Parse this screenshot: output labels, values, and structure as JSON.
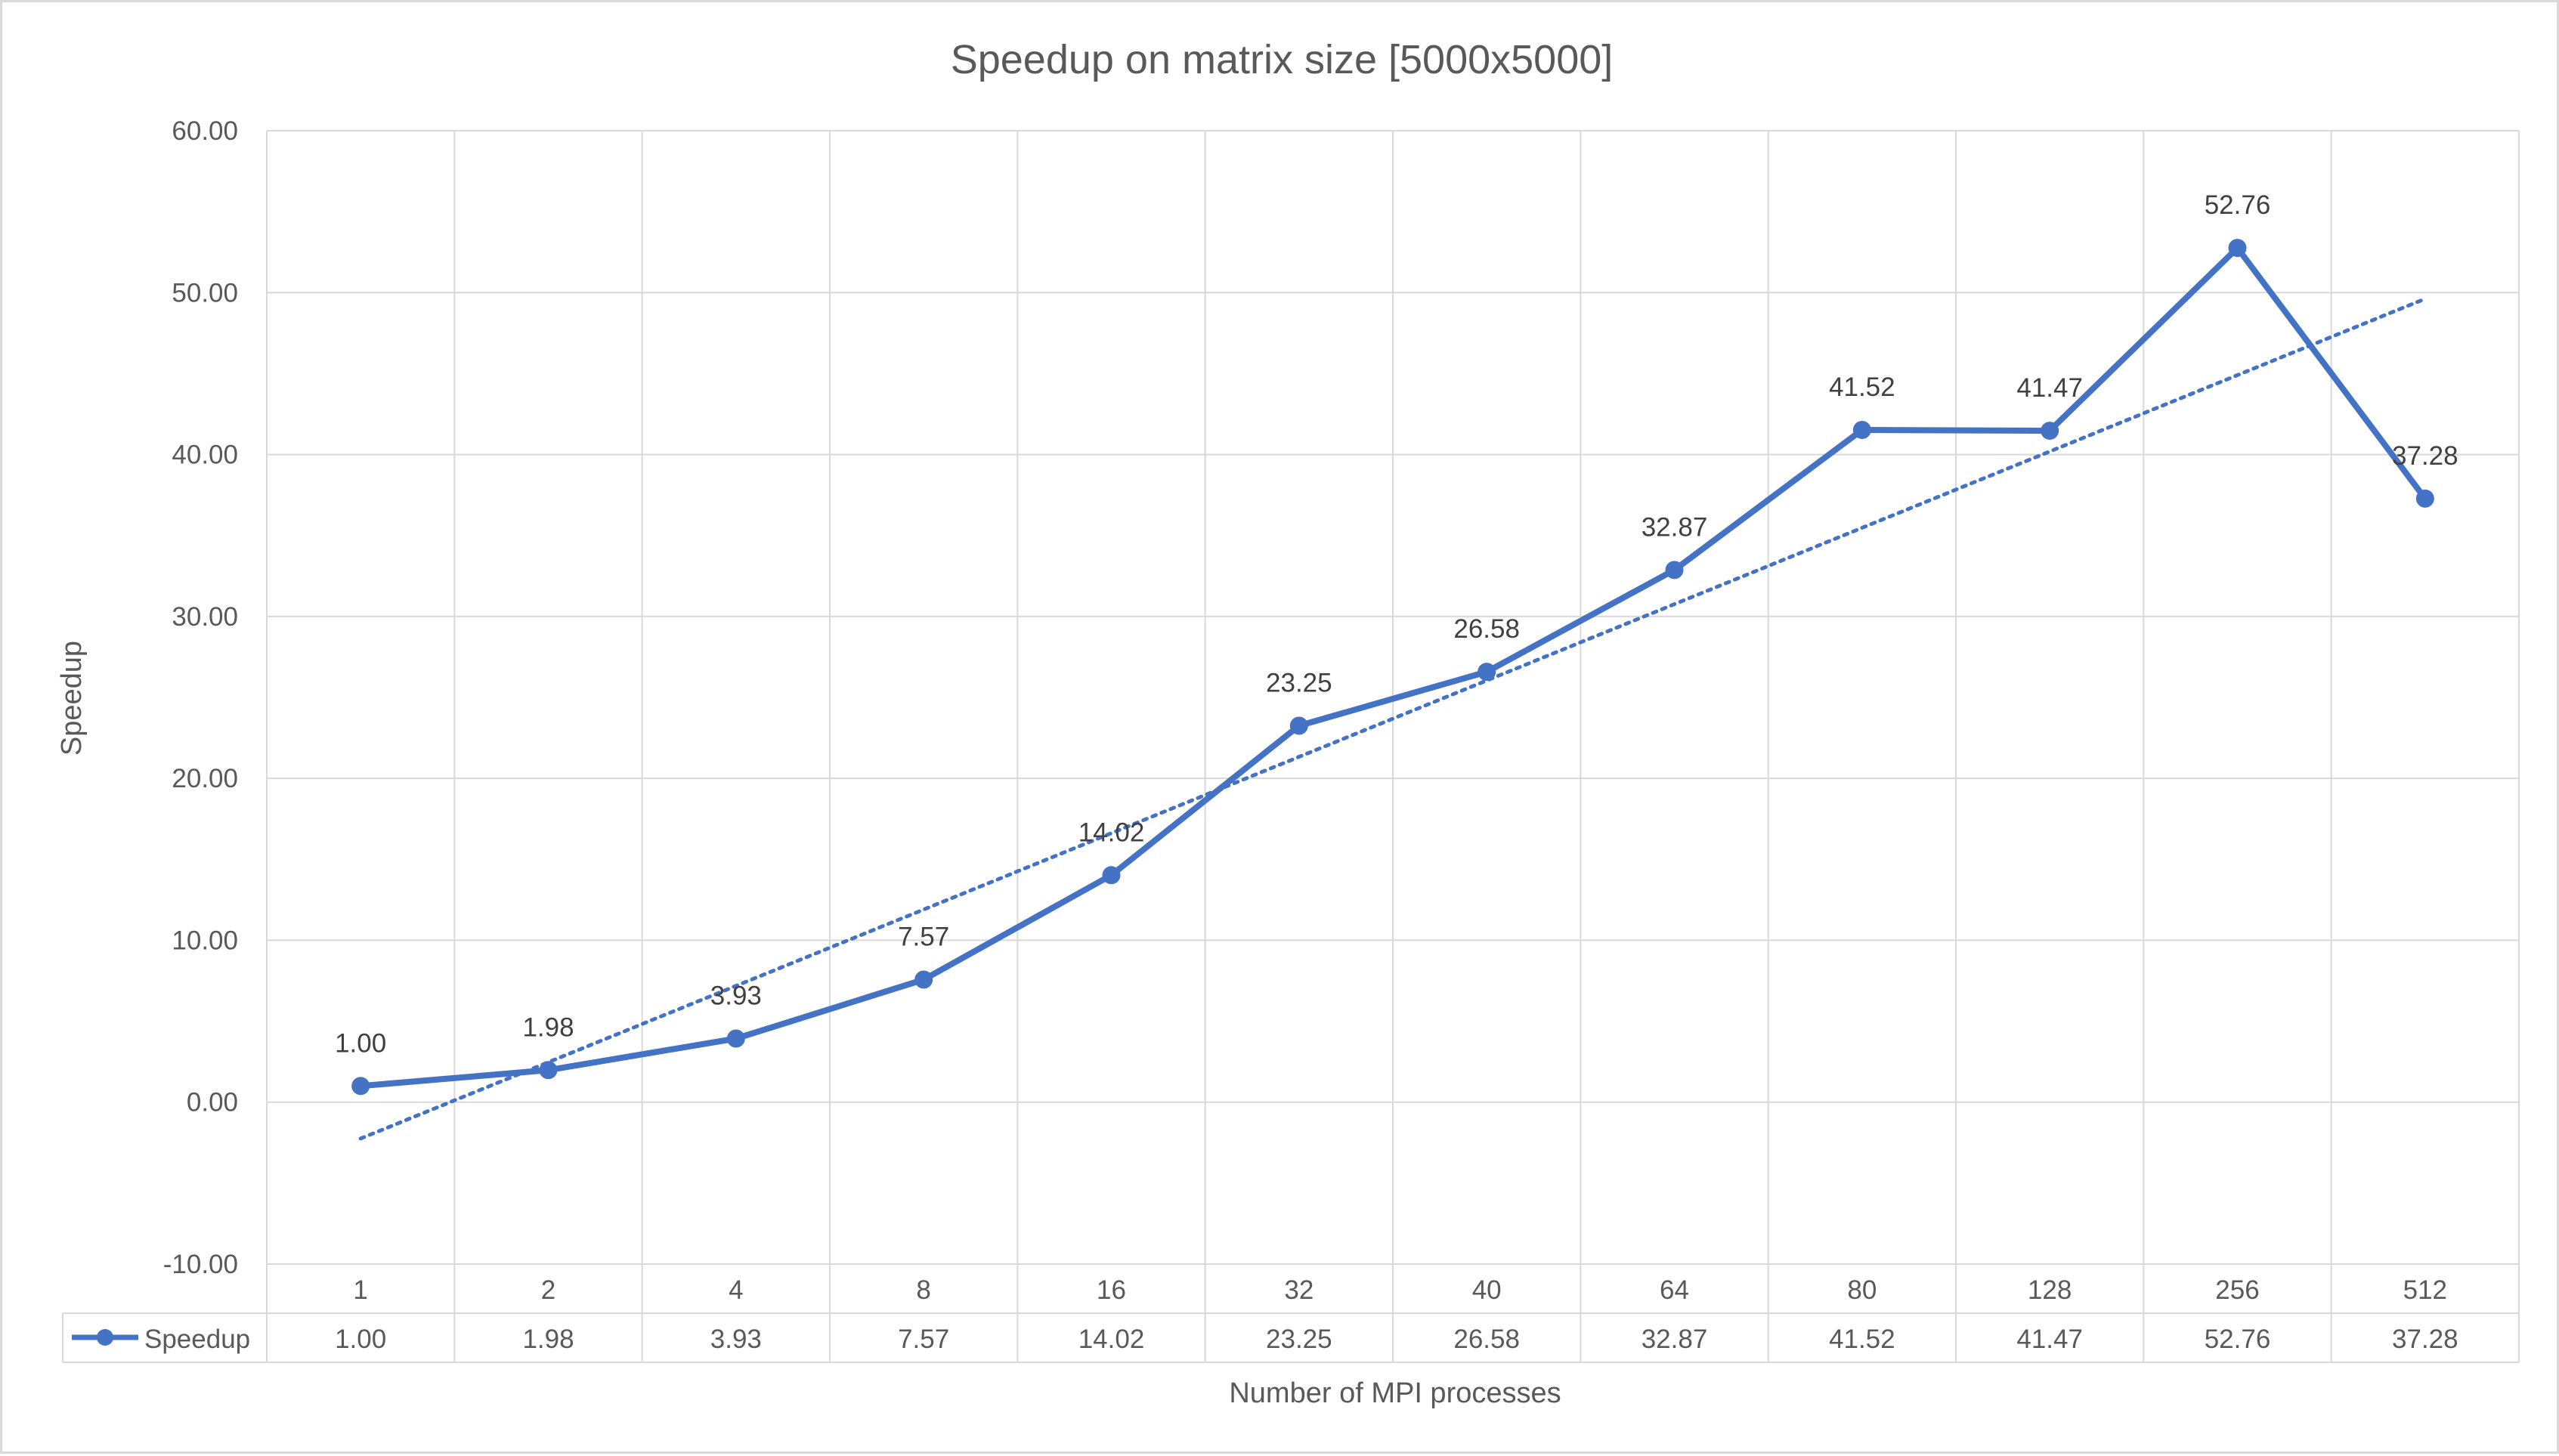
{
  "chart_data": {
    "type": "line",
    "title": "Speedup on matrix size [5000x5000]",
    "xlabel": "Number of MPI processes",
    "ylabel": "Speedup",
    "categories": [
      "1",
      "2",
      "4",
      "8",
      "16",
      "32",
      "40",
      "64",
      "80",
      "128",
      "256",
      "512"
    ],
    "series": [
      {
        "name": "Speedup",
        "values": [
          1.0,
          1.98,
          3.93,
          7.57,
          14.02,
          23.25,
          26.58,
          32.87,
          41.52,
          41.47,
          52.76,
          37.28
        ],
        "labels": [
          "1.00",
          "1.98",
          "3.93",
          "7.57",
          "14.02",
          "23.25",
          "26.58",
          "32.87",
          "41.52",
          "41.47",
          "52.76",
          "37.28"
        ],
        "color": "#4472c4",
        "marker": "circle"
      }
    ],
    "trendline": {
      "type": "linear",
      "style": "dotted",
      "color": "#4472c4"
    },
    "ylim": [
      -10,
      60
    ],
    "yticks": [
      "-10.00",
      "0.00",
      "10.00",
      "20.00",
      "30.00",
      "40.00",
      "50.00",
      "60.00"
    ],
    "grid": true,
    "data_table": true,
    "data_labels": true,
    "gridline_color": "#d9d9d9"
  }
}
